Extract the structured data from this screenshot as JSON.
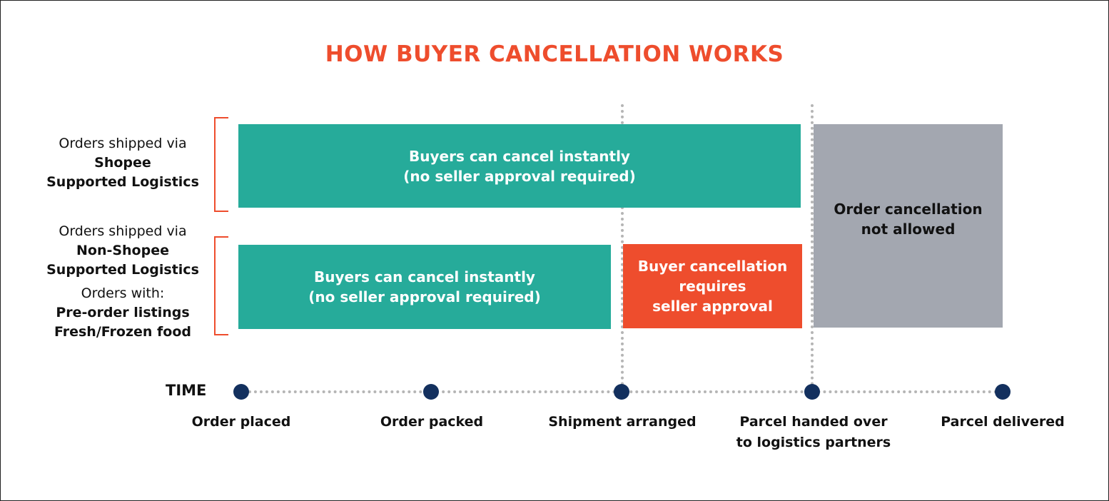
{
  "title": "HOW BUYER CANCELLATION WORKS",
  "rows": [
    {
      "prefix": "Orders shipped via",
      "bold": [
        "Shopee",
        "Supported Logistics"
      ]
    },
    {
      "prefix": "Orders shipped via",
      "bold": [
        "Non-Shopee",
        "Supported Logistics"
      ],
      "prefix2": "Orders with:",
      "bold2": [
        "Pre-order listings",
        "Fresh/Frozen food"
      ]
    }
  ],
  "bars": {
    "shopee_instant": [
      "Buyers can cancel instantly",
      "(no seller approval required)"
    ],
    "nonshopee_instant": [
      "Buyers can cancel instantly",
      "(no seller approval required)"
    ],
    "seller_approval": [
      "Buyer cancellation",
      "requires",
      "seller approval"
    ],
    "not_allowed": [
      "Order cancellation",
      "not allowed"
    ]
  },
  "timeline": {
    "label": "TIME",
    "milestones": [
      [
        "Order placed"
      ],
      [
        "Order packed"
      ],
      [
        "Shipment arranged"
      ],
      [
        "Parcel handed over",
        "to logistics partners"
      ],
      [
        "Parcel delivered"
      ]
    ]
  },
  "colors": {
    "accent": "#EE4D2D",
    "teal": "#26AB9A",
    "gray": "#A3A7B0",
    "navy": "#13305E"
  }
}
